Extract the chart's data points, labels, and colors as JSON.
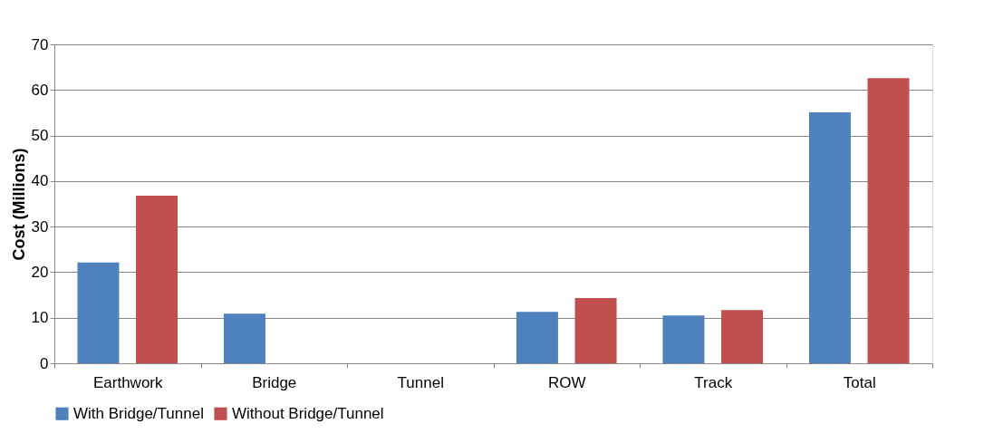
{
  "chart_data": {
    "type": "bar",
    "ylabel": "Cost (Millions)",
    "categories": [
      "Earthwork",
      "Bridge",
      "Tunnel",
      "ROW",
      "Track",
      "Total"
    ],
    "series": [
      {
        "name": "With Bridge/Tunnel",
        "color": "#4f81bd",
        "values": [
          22.1,
          10.9,
          0,
          11.3,
          10.5,
          55.1
        ]
      },
      {
        "name": "Without Bridge/Tunnel",
        "color": "#c0504d",
        "values": [
          36.8,
          0,
          0,
          14.3,
          11.7,
          62.6
        ]
      }
    ],
    "ylim": [
      0,
      70
    ],
    "yticks": [
      0,
      10,
      20,
      30,
      40,
      50,
      60,
      70
    ],
    "grid": "y",
    "legend": "bottom"
  }
}
